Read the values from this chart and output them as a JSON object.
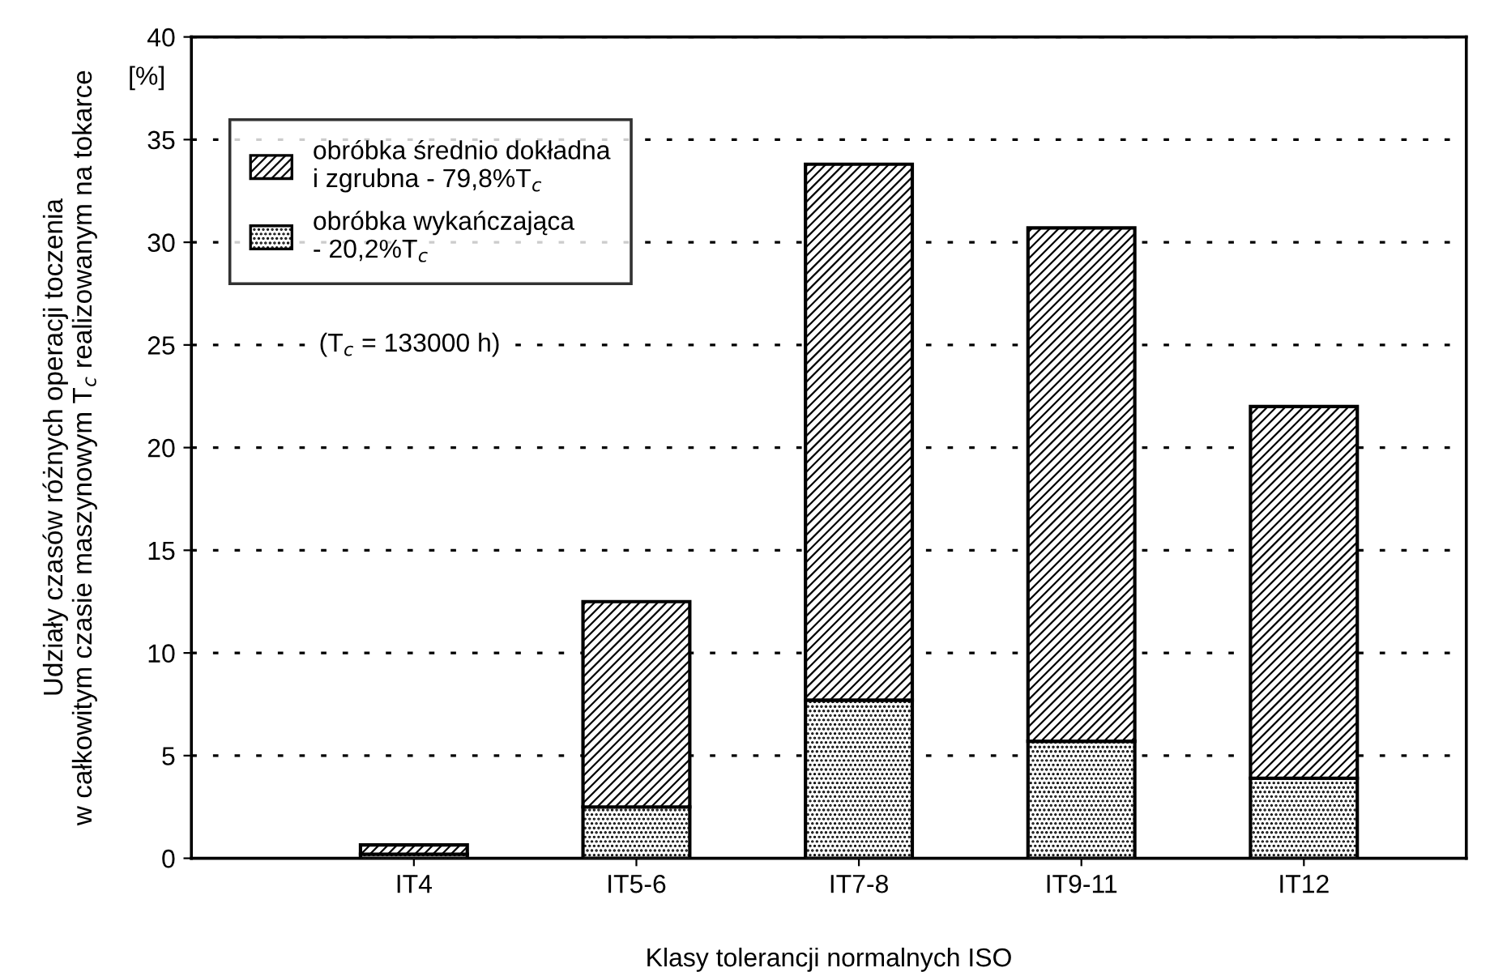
{
  "chart_data": {
    "type": "bar",
    "stacked": true,
    "ylabel": "Udziały czasów różnych operacji toczenia\nw całkowitym czasie maszynowym T$_{c}$ realizowanym na tokarce",
    "xlabel": "Klasy tolerancji normalnych ISO",
    "categories": [
      "IT4",
      "IT5-6",
      "IT7-8",
      "IT9-11",
      "IT12"
    ],
    "series": [
      {
        "name": "obróbka wykańczająca\n- 20,2%T$_{c}$",
        "color": "#000000",
        "values": [
          0.2,
          2.5,
          7.7,
          5.7,
          3.9
        ]
      },
      {
        "name": "obróbka średnio dokładna\ni zgrubna - 79,8%T$_{c}$",
        "color": "#000000",
        "values": [
          0.45,
          10.0,
          26.1,
          25.0,
          18.1
        ]
      }
    ],
    "ylim": [
      0,
      40
    ],
    "yticks": [
      0,
      5,
      10,
      15,
      20,
      25,
      30,
      35,
      40
    ],
    "grid": "y",
    "legend": "top left",
    "annotations": [
      "[%]",
      "(T$_{c}$ = 133000 h)"
    ]
  }
}
